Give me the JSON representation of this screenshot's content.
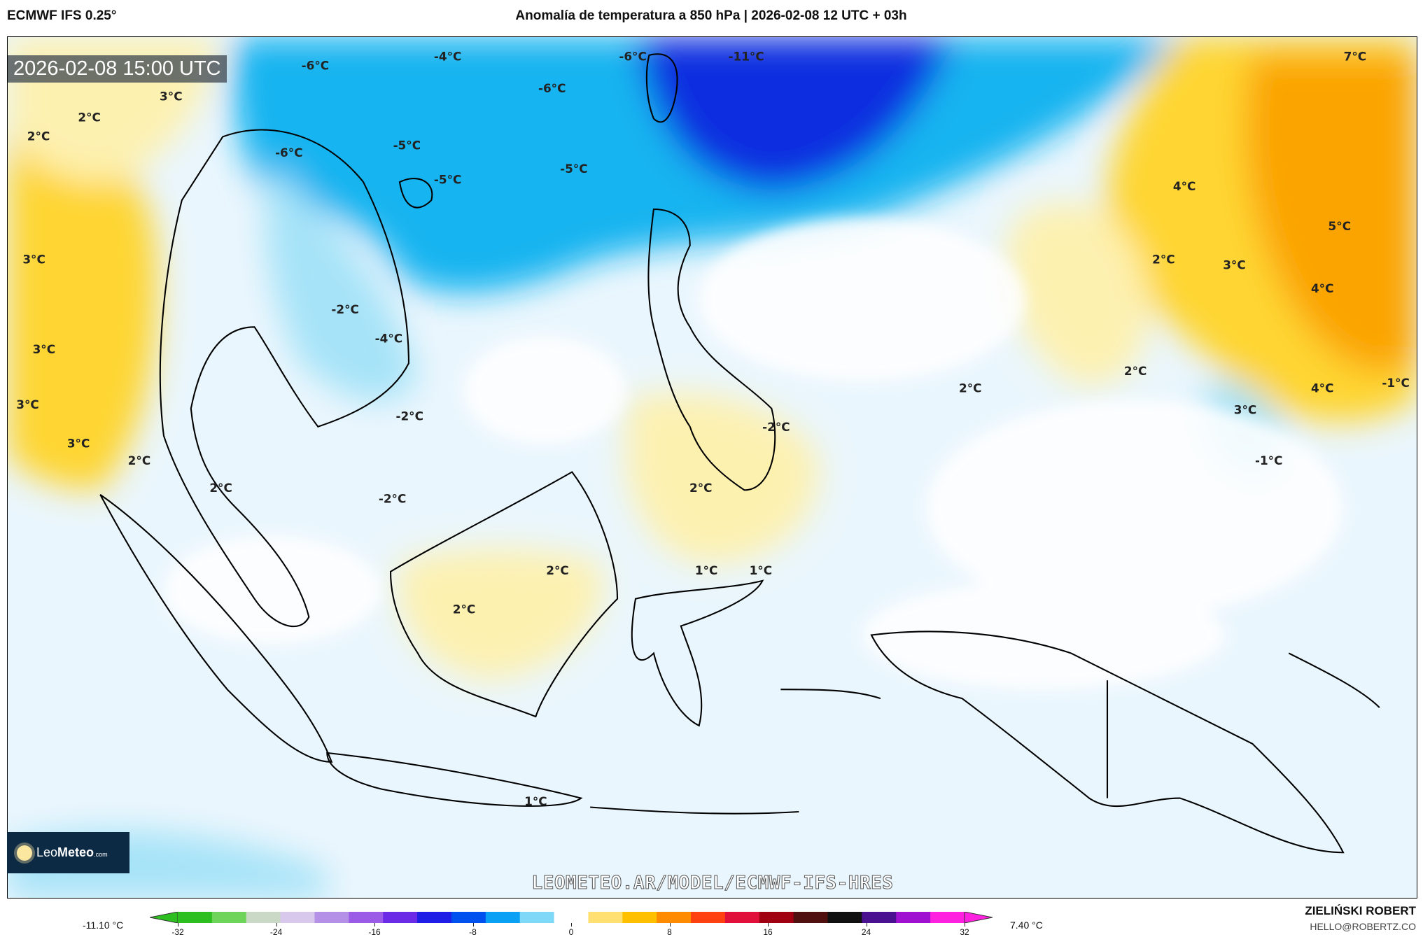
{
  "header": {
    "model": "ECMWF IFS 0.25°",
    "title": "Anomalía de temperatura a 850 hPa | 2026-02-08 12 UTC + 03h"
  },
  "map": {
    "valid_time": "2026-02-08 15:00 UTC",
    "watermark": "LEOMETEO.AR/MODEL/ECMWF-IFS-HRES",
    "logo": {
      "leo": "Leo",
      "meteo": "Meteo",
      "suffix": ".com"
    },
    "contour_labels": [
      "-6°C",
      "-4°C",
      "-6°C",
      "-11°C",
      "7°C",
      "3°C",
      "2°C",
      "2°C",
      "-6°C",
      "-6°C",
      "-5°C",
      "-5°C",
      "-5°C",
      "4°C",
      "5°C",
      "3°C",
      "2°C",
      "3°C",
      "4°C",
      "-2°C",
      "-4°C",
      "3°C",
      "2°C",
      "-1°C",
      "4°C",
      "2°C",
      "3°C",
      "3°C",
      "-2°C",
      "-2°C",
      "3°C",
      "2°C",
      "-1°C",
      "2°C",
      "2°C",
      "-2°C",
      "2°C",
      "1°C",
      "1°C",
      "2°C",
      "1°C"
    ],
    "colors": {
      "cold_max": "#0a2fe0",
      "cold": "#19b4f0",
      "cool": "#a6e3f8",
      "neutral": "#eaf6fd",
      "warm": "#fdf1b0",
      "warmer": "#fed531",
      "hot": "#fba400"
    }
  },
  "colorbar": {
    "min_label": "-11.10 °C",
    "max_label": "7.40 °C",
    "ticks": [
      "-32",
      "-24",
      "-16",
      "-8",
      "0",
      "8",
      "16",
      "24",
      "32"
    ],
    "range": [
      -32,
      32
    ],
    "colors": [
      "#2dbf1f",
      "#6ed45a",
      "#c9d9c6",
      "#d8c8ec",
      "#b491e6",
      "#9b5be6",
      "#6a2ae6",
      "#1e1ee6",
      "#0050f0",
      "#0aa0f5",
      "#7fd8f8",
      "#ffffff",
      "#ffe070",
      "#ffc000",
      "#ff8c00",
      "#ff4010",
      "#e0103a",
      "#a00010",
      "#501010",
      "#101010",
      "#4a1090",
      "#a010d0",
      "#ff20e0"
    ]
  },
  "footer": {
    "author": "ZIELIŃSKI ROBERT",
    "email": "HELLO@ROBERTZ.CO"
  }
}
